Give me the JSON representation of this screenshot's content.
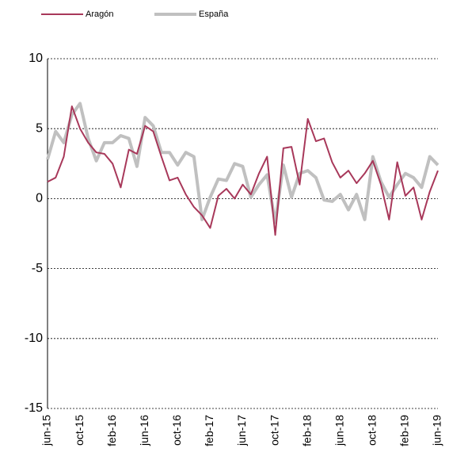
{
  "chart_data": {
    "type": "line",
    "categories": [
      "jun-15",
      null,
      null,
      null,
      "oct-15",
      null,
      null,
      null,
      "feb-16",
      null,
      null,
      null,
      "jun-16",
      null,
      null,
      null,
      "oct-16",
      null,
      null,
      null,
      "feb-17",
      null,
      null,
      null,
      "jun-17",
      null,
      null,
      null,
      "oct-17",
      null,
      null,
      null,
      "feb-18",
      null,
      null,
      null,
      "jun-18",
      null,
      null,
      null,
      "oct-18",
      null,
      null,
      null,
      "feb-19",
      null,
      null,
      null,
      "jun-19"
    ],
    "series": [
      {
        "name": "Aragón",
        "color": "#a8385a",
        "values": [
          1.2,
          1.5,
          3.0,
          6.6,
          5.0,
          4.0,
          3.3,
          3.2,
          2.5,
          0.8,
          3.5,
          3.2,
          5.2,
          4.8,
          3.0,
          1.3,
          1.5,
          0.3,
          -0.6,
          -1.2,
          -2.1,
          0.2,
          0.7,
          0.0,
          1.0,
          0.3,
          1.8,
          3.0,
          -2.6,
          3.6,
          3.7,
          1.0,
          5.7,
          4.1,
          4.3,
          2.6,
          1.5,
          2.0,
          1.1,
          1.8,
          2.7,
          1.0,
          -1.5,
          2.6,
          0.2,
          0.8,
          -1.5,
          0.5,
          2.0
        ]
      },
      {
        "name": "España",
        "color": "#c0c0c0",
        "values": [
          2.8,
          4.8,
          4.0,
          6.0,
          6.8,
          4.3,
          2.7,
          4.0,
          4.0,
          4.5,
          4.3,
          2.3,
          5.8,
          5.2,
          3.3,
          3.3,
          2.4,
          3.3,
          3.0,
          -1.5,
          0.1,
          1.4,
          1.3,
          2.5,
          2.3,
          0.1,
          1.0,
          1.7,
          -1.7,
          2.4,
          0.1,
          1.8,
          2.0,
          1.5,
          -0.1,
          -0.2,
          0.3,
          -0.8,
          0.3,
          -1.5,
          3.0,
          1.2,
          0.1,
          1.0,
          1.8,
          1.5,
          0.8,
          3.0,
          2.4
        ]
      }
    ],
    "ylim": [
      -15,
      10
    ],
    "yticks": [
      10,
      5,
      0,
      -5,
      -10,
      -15
    ],
    "grid": true
  }
}
